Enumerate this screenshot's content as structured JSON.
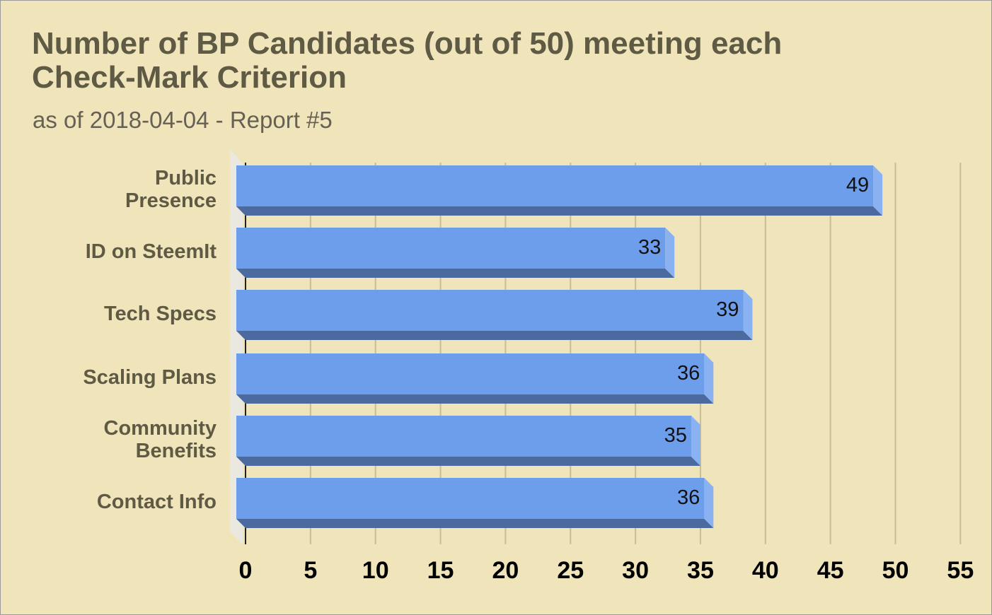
{
  "chart_data": {
    "type": "bar",
    "orientation": "horizontal",
    "style": "3d",
    "title": "Number of BP Candidates (out of 50) meeting each Check-Mark Criterion",
    "subtitle": "as of 2018-04-04 - Report #5",
    "xlabel": "",
    "ylabel": "",
    "categories": [
      "Public Presence",
      "ID on SteemIt",
      "Tech Specs",
      "Scaling Plans",
      "Community Benefits",
      "Contact Info"
    ],
    "category_label_lines": [
      [
        "Public",
        "Presence"
      ],
      [
        "ID on SteemIt"
      ],
      [
        "Tech Specs"
      ],
      [
        "Scaling Plans"
      ],
      [
        "Community",
        "Benefits"
      ],
      [
        "Contact Info"
      ]
    ],
    "values": [
      49,
      33,
      39,
      36,
      35,
      36
    ],
    "data_labels": [
      "49",
      "33",
      "39",
      "36",
      "35",
      "36"
    ],
    "xlim": [
      0,
      55
    ],
    "xticks": [
      0,
      5,
      10,
      15,
      20,
      25,
      30,
      35,
      40,
      45,
      50,
      55
    ],
    "tick_labels": [
      "0",
      "5",
      "10",
      "15",
      "20",
      "25",
      "30",
      "35",
      "40",
      "45",
      "50",
      "55"
    ],
    "grid": true,
    "legend": "none",
    "colors": {
      "background": "#f0e4bb",
      "bar_front": "#6d9eeb",
      "bar_bottom": "#4a6aa0",
      "bar_side": "#8ab2f2",
      "gridline": "#c9bd97",
      "wall": "#ebe8e0",
      "title": "#5f5a44",
      "subtitle": "#666155"
    }
  }
}
